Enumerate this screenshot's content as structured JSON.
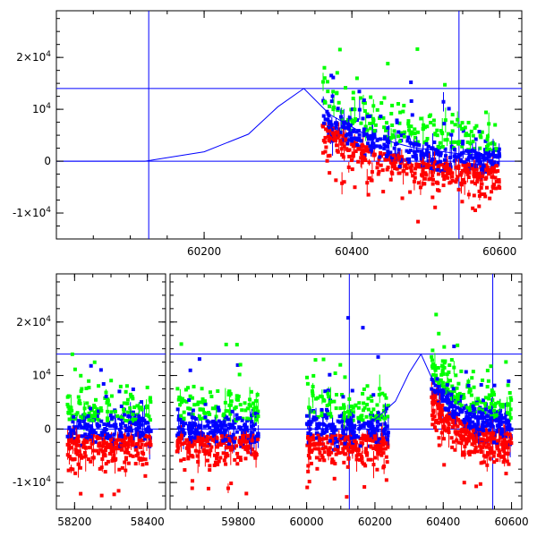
{
  "chart_data": [
    {
      "type": "scatter",
      "panel": "top",
      "title": "",
      "xlabel": "",
      "ylabel": "",
      "xlim": [
        60000,
        60630
      ],
      "ylim": [
        -15000,
        29000
      ],
      "x_ticks": [
        60200,
        60400,
        60600
      ],
      "x_tick_labels": [
        "60200",
        "60400",
        "60600"
      ],
      "y_ticks": [
        -10000,
        0,
        10000,
        20000
      ],
      "y_tick_labels": [
        "-1×10⁴",
        "0",
        "10⁴",
        "2×10⁴"
      ],
      "series": [
        {
          "color": "#ff0000",
          "marker": "square",
          "data_range_x": [
            60360,
            60600
          ],
          "trend": "decaying from ~7000 at 60360 to ~ -1000 at 60600 with large scatter below"
        },
        {
          "color": "#00ff00",
          "marker": "square",
          "data_range_x": [
            60360,
            60600
          ],
          "trend": "decaying from ~9000 to ~1000, scattered above"
        },
        {
          "color": "#0000ff",
          "marker": "square",
          "data_range_x": [
            60360,
            60600
          ],
          "trend": "decaying from ~9500 at 60360 to ~1000 at 60600"
        }
      ],
      "model_curve": {
        "color": "#0000ff",
        "points": [
          [
            60000,
            0
          ],
          [
            60120,
            0
          ],
          [
            60200,
            1800
          ],
          [
            60260,
            5200
          ],
          [
            60300,
            10500
          ],
          [
            60335,
            14000
          ],
          [
            60370,
            9000
          ],
          [
            60420,
            5000
          ],
          [
            60480,
            2700
          ],
          [
            60540,
            1500
          ],
          [
            60600,
            900
          ]
        ]
      },
      "reference_lines": {
        "horizontal": [
          0,
          14000
        ],
        "vertical": [
          60125,
          60545
        ]
      }
    },
    {
      "type": "scatter",
      "panel": "bottom",
      "title": "",
      "xlabel": "",
      "ylabel": "",
      "broken_axis": true,
      "segments": [
        {
          "xlim": [
            58150,
            58450
          ],
          "x_ticks": [
            58200,
            58400
          ],
          "x_tick_labels": [
            "58200",
            "58400"
          ]
        },
        {
          "xlim": [
            59600,
            60630
          ],
          "x_ticks": [
            59800,
            60000,
            60200,
            60400,
            60600
          ],
          "x_tick_labels": [
            "59800",
            "60000",
            "60200",
            "60400",
            "60600"
          ]
        }
      ],
      "ylim": [
        -15000,
        29000
      ],
      "y_ticks": [
        -10000,
        0,
        10000,
        20000
      ],
      "y_tick_labels": [
        "-1×10⁴",
        "0",
        "10⁴",
        "2×10⁴"
      ],
      "seasons": [
        {
          "x_range": [
            58180,
            58410
          ],
          "decaying": false
        },
        {
          "x_range": [
            59620,
            59860
          ],
          "decaying": false
        },
        {
          "x_range": [
            60000,
            60240
          ],
          "decaying": false
        },
        {
          "x_range": [
            60365,
            60600
          ],
          "decaying": true
        }
      ],
      "series_colors": [
        "#ff0000",
        "#00ff00",
        "#0000ff"
      ],
      "model_curve": {
        "color": "#0000ff",
        "points": [
          [
            60000,
            0
          ],
          [
            60120,
            0
          ],
          [
            60200,
            1800
          ],
          [
            60260,
            5200
          ],
          [
            60300,
            10500
          ],
          [
            60335,
            14000
          ],
          [
            60370,
            9000
          ],
          [
            60420,
            5000
          ],
          [
            60480,
            2700
          ],
          [
            60540,
            1500
          ],
          [
            60600,
            900
          ]
        ]
      },
      "reference_lines": {
        "horizontal": [
          0,
          14000
        ],
        "vertical": [
          60125,
          60545
        ]
      }
    }
  ]
}
